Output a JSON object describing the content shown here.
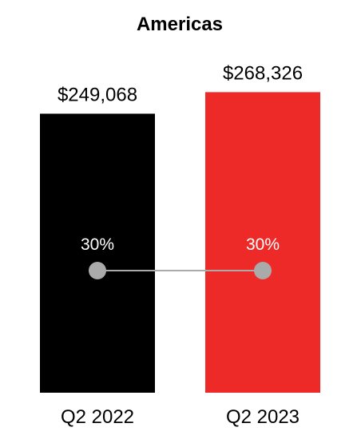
{
  "chart_data": {
    "type": "bar",
    "title": "Americas",
    "categories": [
      "Q2 2022",
      "Q2 2023"
    ],
    "series": [
      {
        "values": [
          249068,
          268326
        ],
        "value_labels": [
          "$249,068",
          "$268,326"
        ],
        "colors": [
          "#000000",
          "#ee2a28"
        ]
      },
      {
        "type": "line",
        "values": [
          30,
          30
        ],
        "value_labels": [
          "30%",
          "30%"
        ],
        "color": "#aaaaaa"
      }
    ],
    "xlabel": "",
    "ylabel": "",
    "ylim": [
      0,
      290000
    ],
    "grid": false,
    "legend": "none"
  }
}
